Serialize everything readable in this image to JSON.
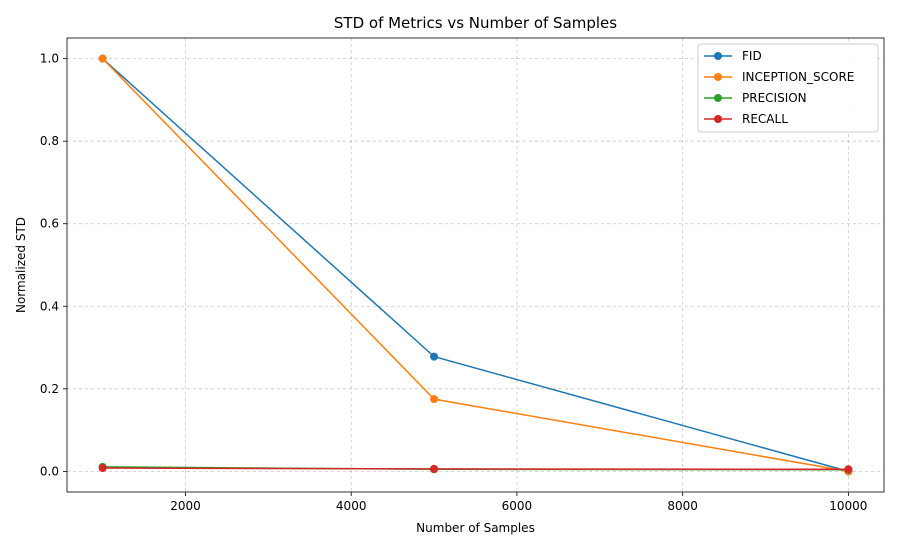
{
  "chart_data": {
    "type": "line",
    "title": "STD of Metrics vs Number of Samples",
    "xlabel": "Number of Samples",
    "ylabel": "Normalized STD",
    "x": [
      1000,
      5000,
      10000
    ],
    "xlim": [
      570,
      10430
    ],
    "ylim": [
      -0.05,
      1.05
    ],
    "xticks": [
      2000,
      4000,
      6000,
      8000,
      10000
    ],
    "yticks": [
      0.0,
      0.2,
      0.4,
      0.6,
      0.8,
      1.0
    ],
    "xtick_labels": [
      "2000",
      "4000",
      "6000",
      "8000",
      "10000"
    ],
    "ytick_labels": [
      "0.0",
      "0.2",
      "0.4",
      "0.6",
      "0.8",
      "1.0"
    ],
    "grid": true,
    "legend_position": "top-right",
    "series": [
      {
        "name": "FID",
        "values": [
          1.0,
          0.278,
          0.0
        ],
        "color": "#1f77b4"
      },
      {
        "name": "INCEPTION_SCORE",
        "values": [
          1.0,
          0.175,
          0.0
        ],
        "color": "#ff7f0e"
      },
      {
        "name": "PRECISION",
        "values": [
          0.011,
          0.005,
          0.004
        ],
        "color": "#2ca02c"
      },
      {
        "name": "RECALL",
        "values": [
          0.008,
          0.006,
          0.005
        ],
        "color": "#d62728"
      }
    ]
  }
}
